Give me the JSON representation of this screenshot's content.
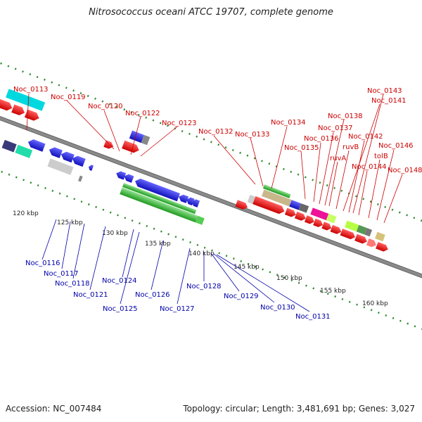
{
  "title": "Nitrosococcus oceani ATCC 19707, complete genome",
  "accession": "Accession: NC_007484",
  "stats": "Topology: circular; Length: 3,481,691 bp; Genes: 3,027",
  "kbp_labels": [
    "120 kbp",
    "125 kbp",
    "130 kbp",
    "135 kbp",
    "140 kbp",
    "145 kbp",
    "150 kbp",
    "155 kbp",
    "160 kbp"
  ],
  "top_genes": [
    "Noc_0113",
    "Noc_0119",
    "Noc_0120",
    "Noc_0122",
    "Noc_0123",
    "Noc_0132",
    "Noc_0133",
    "Noc_0134",
    "Noc_0135",
    "Noc_0136",
    "Noc_0137",
    "Noc_0138",
    "ruvA",
    "ruvB",
    "Noc_0141",
    "Noc_0142",
    "Noc_0143",
    "Noc_0144",
    "tolB",
    "Noc_0146",
    "Noc_0148"
  ],
  "bottom_genes": [
    "Noc_0116",
    "Noc_0117",
    "Noc_0118",
    "Noc_0121",
    "Noc_0124",
    "Noc_0125",
    "Noc_0126",
    "Noc_0127",
    "Noc_0128",
    "Noc_0129",
    "Noc_0130",
    "Noc_0131"
  ],
  "colors": {
    "forward": "#ee1111",
    "reverse": "#2222dd",
    "backbone": "#888888",
    "green": "#33aa33"
  }
}
